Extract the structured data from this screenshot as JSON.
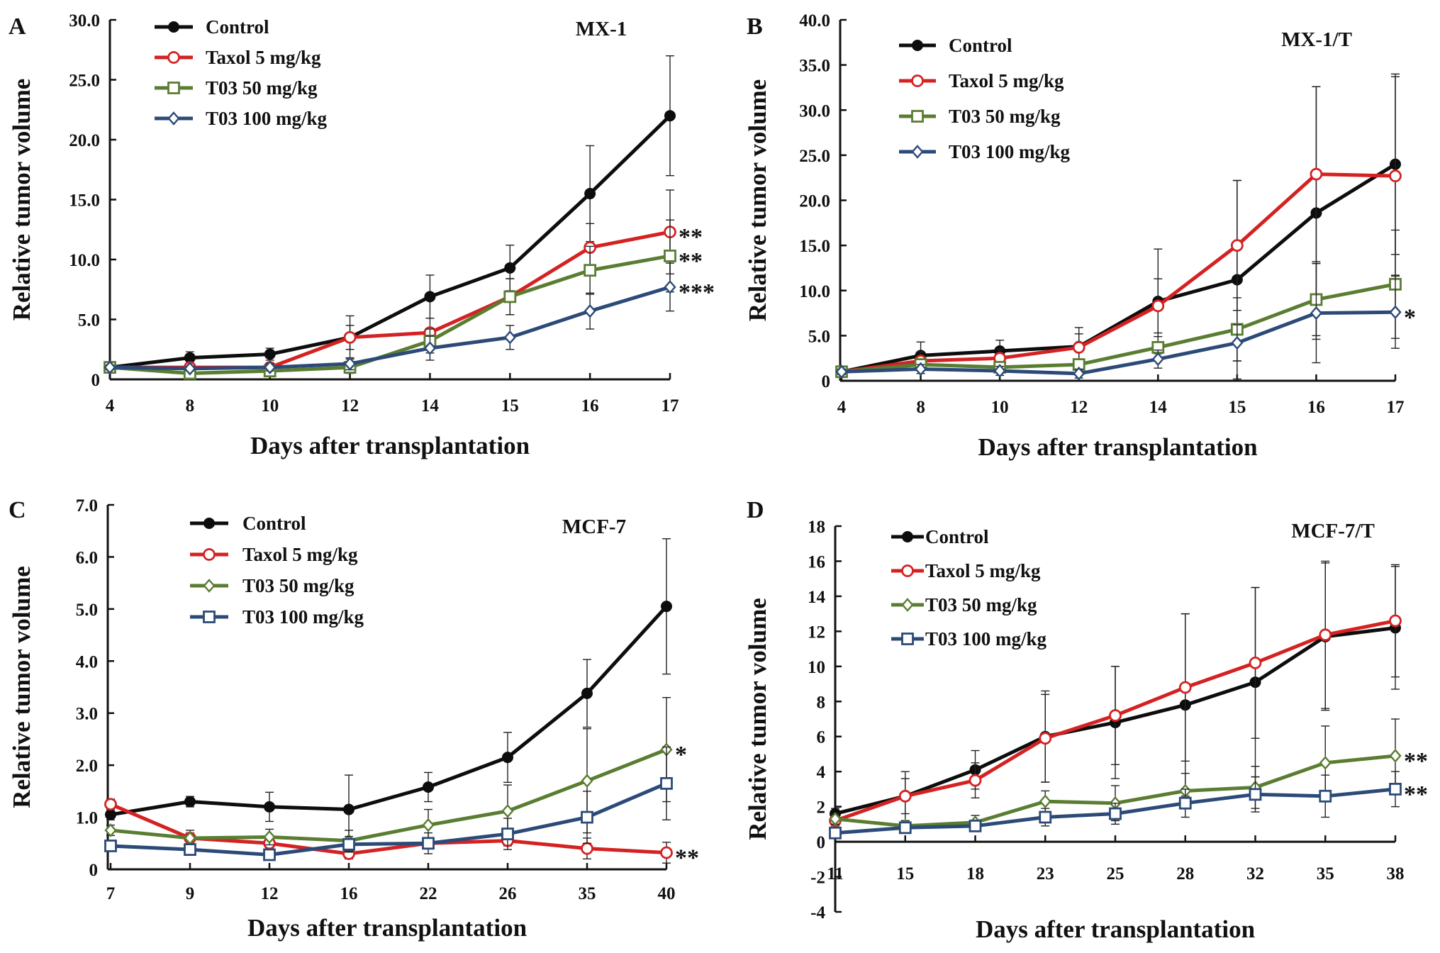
{
  "figure": {
    "colors": {
      "Control": "#0d0d0d",
      "Taxol": "#d42222",
      "T03_50": "#5a7d32",
      "T03_100": "#2c4a78"
    }
  },
  "chart_data": [
    {
      "panel": "A",
      "type": "line",
      "title": "MX-1",
      "xlabel": "Days after transplantation",
      "ylabel": "Relative tumor volume",
      "categories": [
        "4",
        "8",
        "10",
        "12",
        "14",
        "15",
        "16",
        "17"
      ],
      "yticks": [
        "0",
        "5.0",
        "10.0",
        "15.0",
        "20.0",
        "25.0",
        "30.0"
      ],
      "ylim": [
        0,
        30
      ],
      "legend_position": "top-left",
      "series": [
        {
          "name": "Control",
          "key": "Control",
          "marker": "filled-circle",
          "values": [
            1.0,
            1.8,
            2.1,
            3.5,
            6.9,
            9.3,
            15.5,
            22.0
          ],
          "err": [
            0.3,
            0.5,
            0.5,
            1.8,
            1.8,
            1.9,
            4.0,
            5.0
          ],
          "sig": ""
        },
        {
          "name": "Taxol 5 mg/kg",
          "key": "Taxol",
          "marker": "open-circle",
          "values": [
            1.0,
            1.0,
            1.0,
            3.5,
            3.9,
            6.9,
            11.0,
            12.3
          ],
          "err": [
            0.2,
            0.3,
            0.3,
            1.0,
            1.2,
            1.5,
            2.0,
            3.5
          ],
          "sig": "**"
        },
        {
          "name": "T03 50 mg/kg",
          "key": "T03_50",
          "marker": "open-square",
          "values": [
            1.0,
            0.5,
            0.7,
            1.0,
            3.2,
            6.9,
            9.1,
            10.3
          ],
          "err": [
            0.2,
            0.2,
            0.3,
            0.5,
            1.0,
            1.5,
            2.0,
            3.0
          ],
          "sig": "**"
        },
        {
          "name": "T03 100 mg/kg",
          "key": "T03_100",
          "marker": "open-diamond",
          "values": [
            1.0,
            0.9,
            1.0,
            1.3,
            2.6,
            3.5,
            5.7,
            7.7
          ],
          "err": [
            0.2,
            0.2,
            0.3,
            0.5,
            1.0,
            1.0,
            1.5,
            2.0
          ],
          "sig": "***"
        }
      ]
    },
    {
      "panel": "B",
      "type": "line",
      "title": "MX-1/T",
      "xlabel": "Days after transplantation",
      "ylabel": "Relative tumor volume",
      "categories": [
        "4",
        "8",
        "10",
        "12",
        "14",
        "15",
        "16",
        "17"
      ],
      "yticks": [
        "0",
        "5.0",
        "10.0",
        "15.0",
        "20.0",
        "25.0",
        "30.0",
        "35.0",
        "40.0"
      ],
      "ylim": [
        0,
        40
      ],
      "legend_position": "top-left",
      "series": [
        {
          "name": "Control",
          "key": "Control",
          "marker": "filled-circle",
          "values": [
            1.0,
            2.8,
            3.3,
            3.8,
            8.8,
            11.2,
            18.6,
            24.0
          ],
          "err": [
            0.3,
            1.5,
            1.2,
            2.1,
            5.8,
            11.0,
            14.0,
            10.0
          ],
          "sig": ""
        },
        {
          "name": "Taxol 5 mg/kg",
          "key": "Taxol",
          "marker": "open-circle",
          "values": [
            1.0,
            2.2,
            2.5,
            3.7,
            8.3,
            15.0,
            22.9,
            22.7
          ],
          "err": [
            0.3,
            1.0,
            1.0,
            1.5,
            3.0,
            7.2,
            9.7,
            11.0
          ],
          "sig": ""
        },
        {
          "name": "T03 50 mg/kg",
          "key": "T03_50",
          "marker": "open-square",
          "values": [
            1.0,
            1.8,
            1.5,
            1.8,
            3.7,
            5.7,
            9.0,
            10.7
          ],
          "err": [
            0.3,
            0.5,
            0.5,
            0.5,
            1.2,
            3.5,
            4.0,
            6.0
          ],
          "sig": ""
        },
        {
          "name": "T03 100 mg/kg",
          "key": "T03_100",
          "marker": "open-diamond",
          "values": [
            1.0,
            1.3,
            1.1,
            0.8,
            2.4,
            4.2,
            7.5,
            7.6
          ],
          "err": [
            0.3,
            0.5,
            0.5,
            0.5,
            1.0,
            2.0,
            5.5,
            4.0
          ],
          "sig": "*"
        }
      ]
    },
    {
      "panel": "C",
      "type": "line",
      "title": "MCF-7",
      "xlabel": "Days after transplantation",
      "ylabel": "Relative tumor volume",
      "categories": [
        "7",
        "9",
        "12",
        "16",
        "22",
        "26",
        "35",
        "40"
      ],
      "yticks": [
        "0",
        "1.0",
        "2.0",
        "3.0",
        "4.0",
        "5.0",
        "6.0",
        "7.0"
      ],
      "ylim": [
        0,
        7
      ],
      "legend_position": "top-left",
      "series": [
        {
          "name": "Control",
          "key": "Control",
          "marker": "filled-circle",
          "values": [
            1.05,
            1.3,
            1.2,
            1.15,
            1.58,
            2.15,
            3.38,
            5.05
          ],
          "err": [
            0.1,
            0.1,
            0.28,
            0.66,
            0.28,
            0.48,
            0.65,
            1.3
          ],
          "sig": ""
        },
        {
          "name": "Taxol 5 mg/kg",
          "key": "Taxol",
          "marker": "open-circle",
          "values": [
            1.25,
            0.6,
            0.5,
            0.3,
            0.5,
            0.55,
            0.4,
            0.32
          ],
          "err": [
            0.1,
            0.1,
            0.1,
            0.1,
            0.1,
            0.1,
            0.2,
            0.2
          ],
          "sig": "**"
        },
        {
          "name": "T03 50 mg/kg",
          "key": "T03_50",
          "marker": "open-diamond",
          "values": [
            0.75,
            0.6,
            0.62,
            0.55,
            0.85,
            1.12,
            1.7,
            2.3
          ],
          "err": [
            0.1,
            0.15,
            0.15,
            0.2,
            0.3,
            0.5,
            1.0,
            1.0
          ],
          "sig": "*"
        },
        {
          "name": "T03 100 mg/kg",
          "key": "T03_100",
          "marker": "open-square",
          "values": [
            0.45,
            0.38,
            0.28,
            0.48,
            0.5,
            0.68,
            1.0,
            1.65
          ],
          "err": [
            0.1,
            0.1,
            0.1,
            0.15,
            0.2,
            0.3,
            0.5,
            0.7
          ],
          "sig": ""
        }
      ]
    },
    {
      "panel": "D",
      "type": "line",
      "title": "MCF-7/T",
      "xlabel": "Days after transplantation",
      "ylabel": "Relative tumor volume",
      "categories": [
        "11",
        "15",
        "18",
        "23",
        "25",
        "28",
        "32",
        "35",
        "38"
      ],
      "yticks": [
        "-4",
        "-2",
        "0",
        "2",
        "4",
        "6",
        "8",
        "10",
        "12",
        "14",
        "16",
        "18"
      ],
      "ylim": [
        -4,
        18
      ],
      "legend_position": "top-left",
      "series": [
        {
          "name": "Control",
          "key": "Control",
          "marker": "filled-circle",
          "values": [
            1.6,
            2.6,
            4.1,
            6.0,
            6.8,
            7.8,
            9.1,
            11.7,
            12.2
          ],
          "err": [
            0.3,
            1.4,
            1.1,
            2.6,
            3.2,
            5.2,
            5.4,
            4.2,
            3.5
          ],
          "sig": ""
        },
        {
          "name": "Taxol 5 mg/kg",
          "key": "Taxol",
          "marker": "open-circle",
          "values": [
            1.2,
            2.6,
            3.5,
            5.9,
            7.2,
            8.8,
            10.2,
            11.8,
            12.6
          ],
          "err": [
            0.3,
            1.0,
            1.0,
            2.5,
            2.8,
            4.2,
            4.3,
            4.2,
            3.2
          ],
          "sig": ""
        },
        {
          "name": "T03 50 mg/kg",
          "key": "T03_50",
          "marker": "open-diamond",
          "values": [
            1.3,
            0.9,
            1.1,
            2.3,
            2.2,
            2.9,
            3.1,
            4.5,
            4.9
          ],
          "err": [
            0.3,
            0.3,
            0.4,
            0.6,
            1.0,
            1.0,
            1.2,
            2.1,
            2.1
          ],
          "sig": "**"
        },
        {
          "name": "T03 100 mg/kg",
          "key": "T03_100",
          "marker": "open-square",
          "values": [
            0.5,
            0.8,
            0.9,
            1.4,
            1.6,
            2.2,
            2.7,
            2.6,
            3.0
          ],
          "err": [
            0.2,
            0.3,
            0.3,
            0.5,
            0.6,
            0.8,
            1.0,
            1.2,
            1.0
          ],
          "sig": "**"
        }
      ]
    }
  ]
}
